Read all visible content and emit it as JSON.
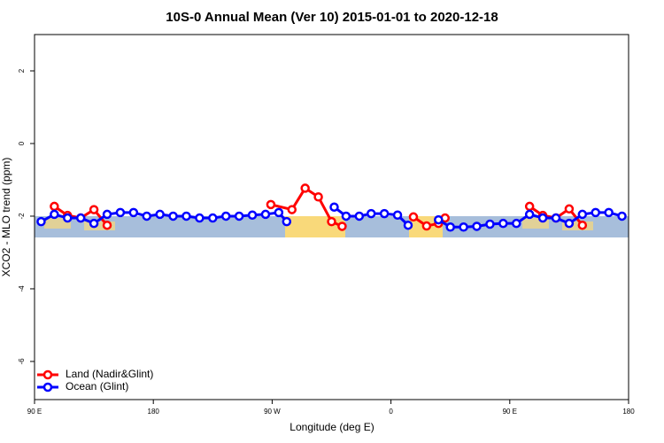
{
  "chart_data": {
    "type": "line",
    "title": "10S-0 Annual Mean (Ver 10)   2015-01-01 to 2020-12-18",
    "x_label": "Longitude (deg E)",
    "y_label": "XCO2 - MLO trend (ppm)",
    "xlim": [
      90,
      540
    ],
    "ylim": [
      -7.05,
      3.0
    ],
    "xticks": [
      {
        "value": 90,
        "label": "90 E"
      },
      180,
      {
        "value": 270,
        "label": "90 W"
      },
      {
        "value": 360,
        "label": "0"
      },
      {
        "value": 450,
        "label": "90 E"
      },
      {
        "value": 540,
        "label": "180"
      }
    ],
    "yticks": [
      -6,
      -4,
      -2,
      0,
      2
    ],
    "legend": "bottom-left",
    "series": [
      {
        "name": "Land (Nadir&Glint)",
        "color": "#ff0000",
        "x": [
          105,
          115,
          125,
          135,
          145,
          null,
          269,
          285,
          295,
          305,
          315,
          323,
          null,
          377,
          387,
          396,
          401,
          null,
          465,
          475,
          485,
          495,
          505
        ],
        "values": [
          -1.73,
          -1.98,
          -2.05,
          -1.82,
          -2.25,
          null,
          -1.68,
          -1.82,
          -1.23,
          -1.47,
          -2.15,
          -2.28,
          null,
          -2.02,
          -2.27,
          -2.2,
          -2.05,
          null,
          -1.73,
          -1.98,
          -2.05,
          -1.8,
          -2.25
        ]
      },
      {
        "name": "Ocean (Glint)",
        "color": "#0000ff",
        "x": [
          95,
          105,
          115,
          125,
          135,
          145,
          155,
          165,
          175,
          185,
          195,
          205,
          215,
          225,
          235,
          245,
          255,
          265,
          275,
          281,
          null,
          317,
          326,
          336,
          345,
          355,
          365,
          373,
          null,
          396,
          405,
          415,
          425,
          435,
          445,
          455,
          465,
          475,
          485,
          495,
          505,
          515,
          525,
          535
        ],
        "values": [
          -2.15,
          -1.95,
          -2.05,
          -2.05,
          -2.2,
          -1.95,
          -1.9,
          -1.9,
          -2.0,
          -1.95,
          -2.0,
          -2.0,
          -2.05,
          -2.05,
          -2.0,
          -2.0,
          -1.97,
          -1.95,
          -1.9,
          -2.15,
          null,
          -1.75,
          -2.0,
          -2.0,
          -1.93,
          -1.93,
          -1.97,
          -2.25,
          null,
          -2.1,
          -2.3,
          -2.3,
          -2.28,
          -2.22,
          -2.2,
          -2.2,
          -1.95,
          -2.05,
          -2.05,
          -2.2,
          -1.95,
          -1.9,
          -1.9,
          -2.0
        ]
      }
    ]
  }
}
